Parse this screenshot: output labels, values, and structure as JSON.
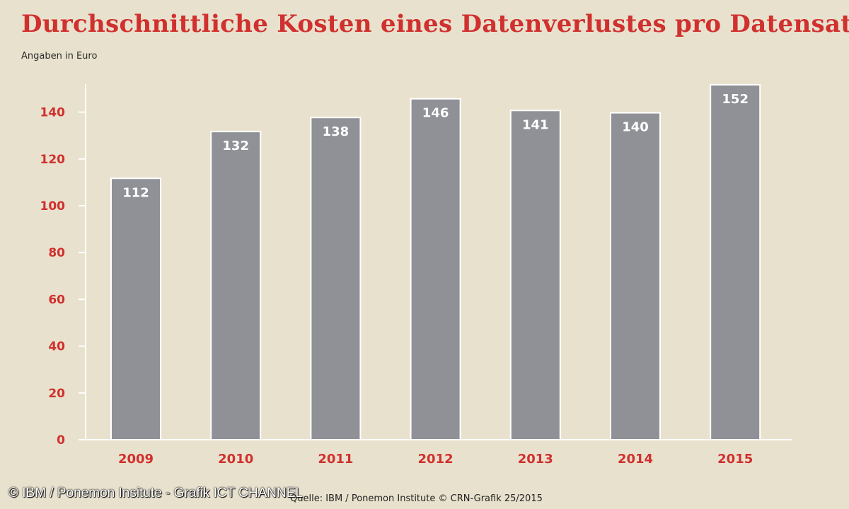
{
  "chart_data": {
    "type": "bar",
    "title": "Durchschnittliche Kosten eines Datenverlustes pro Datensatz",
    "subtitle": "Angaben in Euro",
    "categories": [
      "2009",
      "2010",
      "2011",
      "2012",
      "2013",
      "2014",
      "2015"
    ],
    "values": [
      112,
      132,
      138,
      146,
      141,
      140,
      152
    ],
    "ylim": [
      0,
      152
    ],
    "yticks": [
      0,
      20,
      40,
      60,
      80,
      100,
      120,
      140
    ],
    "xlabel": "",
    "ylabel": "",
    "grid": false,
    "legend": "none",
    "data_labels": true
  },
  "colors": {
    "background": "#e8e1cd",
    "bar": "#909196",
    "accent": "#d0302e",
    "axis": "#ffffff"
  },
  "source": "Quelle: IBM / Ponemon Institute © CRN-Grafik 25/2015",
  "watermark": "© IBM / Ponemon Insitute - Grafik ICT CHANNEL"
}
